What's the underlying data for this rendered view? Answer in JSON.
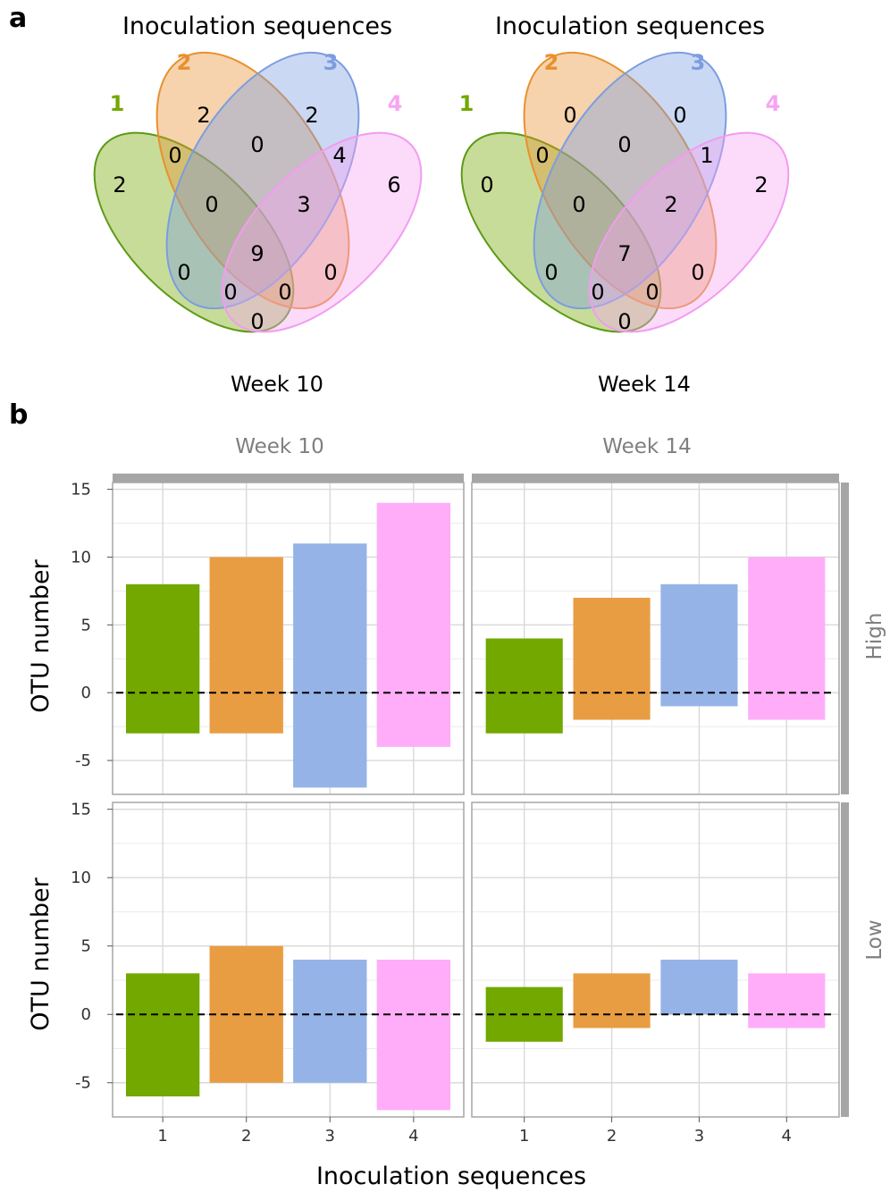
{
  "panel_a": {
    "letter": "a",
    "venns": [
      {
        "title": "Inoculation sequences",
        "week_label": "Week 10",
        "set_labels": [
          "1",
          "2",
          "3",
          "4"
        ],
        "regions": {
          "only1": "2",
          "only2": "2",
          "only3": "2",
          "only4": "6",
          "s12": "0",
          "s23": "0",
          "s34": "4",
          "s123": "0",
          "s234": "3",
          "s1234": "9",
          "s13": "0",
          "s124": "0",
          "s134": "0",
          "s24": "0",
          "s14": "0"
        }
      },
      {
        "title": "Inoculation sequences",
        "week_label": "Week 14",
        "set_labels": [
          "1",
          "2",
          "3",
          "4"
        ],
        "regions": {
          "only1": "0",
          "only2": "0",
          "only3": "0",
          "only4": "2",
          "s12": "0",
          "s23": "0",
          "s34": "1",
          "s123": "0",
          "s234": "2",
          "s1234": "7",
          "s13": "0",
          "s124": "0",
          "s134": "0",
          "s24": "0",
          "s14": "0"
        }
      }
    ],
    "set_colors": [
      "#72a800",
      "#e8902f",
      "#7b9de0",
      "#f7a4f3"
    ],
    "outline_colors": [
      "#5d9a16",
      "#e8902f",
      "#7b9de0",
      "#f29cf0"
    ]
  },
  "panel_b": {
    "letter": "b",
    "col_strips": [
      "Week 10",
      "Week 14"
    ],
    "row_strips": [
      "High",
      "Low"
    ],
    "xlabel": "Inoculation sequences",
    "ylabel": "OTU number"
  },
  "chart_data": {
    "type": "bar",
    "categories": [
      "1",
      "2",
      "3",
      "4"
    ],
    "ylim": [
      -7.5,
      15.5
    ],
    "yticks": [
      -5,
      0,
      5,
      10,
      15
    ],
    "ytick_labels": [
      "-5",
      "0",
      "5",
      "10",
      "15"
    ],
    "grid": true,
    "reference_line": 0,
    "bar_colors": [
      "#72a800",
      "#e99d43",
      "#95b3e7",
      "#ffadf9"
    ],
    "facets": [
      {
        "col": "Week 10",
        "row": "High",
        "low": [
          -3,
          -3,
          -7,
          -4
        ],
        "high": [
          8,
          10,
          11,
          14
        ]
      },
      {
        "col": "Week 14",
        "row": "High",
        "low": [
          -3,
          -2,
          -1,
          -2
        ],
        "high": [
          4,
          7,
          8,
          10
        ]
      },
      {
        "col": "Week 10",
        "row": "Low",
        "low": [
          -6,
          -5,
          -5,
          -7
        ],
        "high": [
          3,
          5,
          4,
          4
        ]
      },
      {
        "col": "Week 14",
        "row": "Low",
        "low": [
          -2,
          -1,
          0,
          -1
        ],
        "high": [
          2,
          3,
          4,
          3
        ]
      }
    ]
  }
}
